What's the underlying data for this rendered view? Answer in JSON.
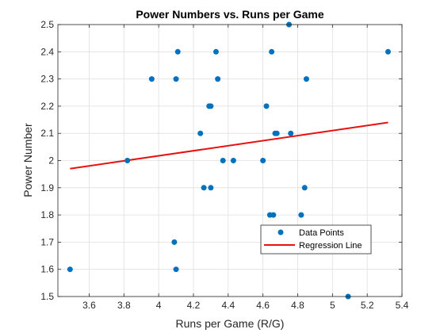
{
  "chart_data": {
    "type": "scatter",
    "title": "Power Numbers vs. Runs per Game",
    "xlabel": "Runs per Game (R/G)",
    "ylabel": "Power Number",
    "xlim": [
      3.42,
      5.4
    ],
    "ylim": [
      1.5,
      2.5
    ],
    "x_ticks": [
      "3.6",
      "3.8",
      "4",
      "4.2",
      "4.4",
      "4.6",
      "4.8",
      "5",
      "5.2",
      "5.4"
    ],
    "y_ticks": [
      "1.5",
      "1.6",
      "1.7",
      "1.8",
      "1.9",
      "2",
      "2.1",
      "2.2",
      "2.3",
      "2.4",
      "2.5"
    ],
    "grid": true,
    "legend_position": "lower-right",
    "series": [
      {
        "name": "Data Points",
        "kind": "scatter",
        "color": "#0072BD",
        "points": [
          [
            3.49,
            1.6
          ],
          [
            3.82,
            2.0
          ],
          [
            3.96,
            2.3
          ],
          [
            4.09,
            1.7
          ],
          [
            4.1,
            1.6
          ],
          [
            4.1,
            2.3
          ],
          [
            4.11,
            2.4
          ],
          [
            4.24,
            2.1
          ],
          [
            4.26,
            1.9
          ],
          [
            4.29,
            2.2
          ],
          [
            4.3,
            1.9
          ],
          [
            4.3,
            2.2
          ],
          [
            4.33,
            2.4
          ],
          [
            4.34,
            2.3
          ],
          [
            4.37,
            2.0
          ],
          [
            4.43,
            2.0
          ],
          [
            4.6,
            2.0
          ],
          [
            4.62,
            2.2
          ],
          [
            4.64,
            1.8
          ],
          [
            4.65,
            2.4
          ],
          [
            4.66,
            1.8
          ],
          [
            4.67,
            2.1
          ],
          [
            4.68,
            2.1
          ],
          [
            4.75,
            2.5
          ],
          [
            4.76,
            2.1
          ],
          [
            4.82,
            1.8
          ],
          [
            4.84,
            1.9
          ],
          [
            4.85,
            2.3
          ],
          [
            5.09,
            1.5
          ],
          [
            5.32,
            2.4
          ]
        ]
      },
      {
        "name": "Regression Line",
        "kind": "line",
        "color": "#E8110F",
        "points": [
          [
            3.49,
            1.97
          ],
          [
            5.32,
            2.14
          ]
        ]
      }
    ]
  }
}
